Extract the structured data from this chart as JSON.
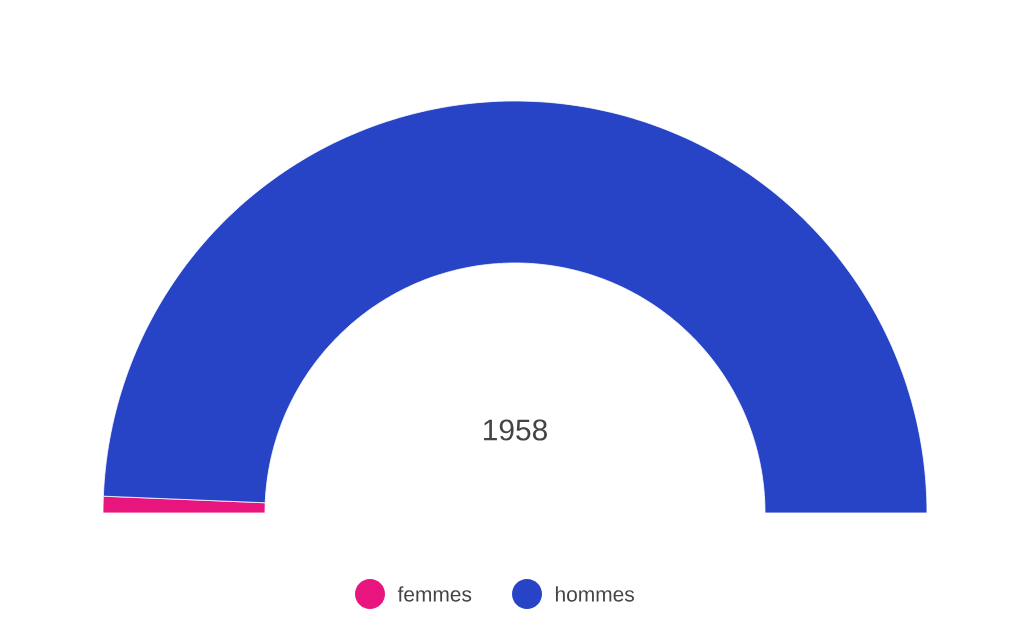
{
  "chart_data": {
    "type": "donut",
    "title": "1958",
    "categories": [
      "femmes",
      "hommes"
    ],
    "values": [
      1.3,
      98.7
    ],
    "colors": [
      "#e8157f",
      "#2743c6"
    ],
    "legend": "bottom"
  }
}
